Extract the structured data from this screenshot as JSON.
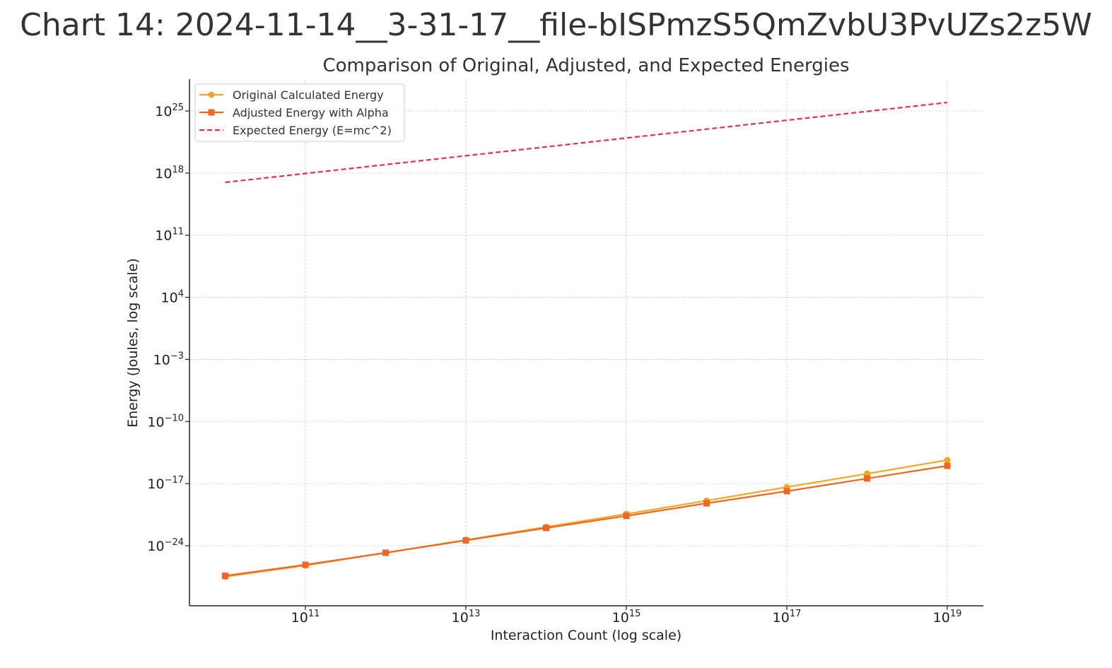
{
  "page": {
    "title": "Chart 14: 2024-11-14__3-31-17__file-bISPmzS5QmZvbU3PvUZs2z5W"
  },
  "chart_data": {
    "type": "line",
    "title": "Comparison of Original, Adjusted, and Expected Energies",
    "xlabel": "Interaction Count (log scale)",
    "ylabel": "Energy (Joules, log scale)",
    "x_scale": "log",
    "y_scale": "log",
    "xlim": [
      2000000000.0,
      1e+19
    ],
    "ylim": [
      1e-31,
      1e+29
    ],
    "x_ticks": [
      {
        "value": 100000000000.0,
        "base": "10",
        "exp": "11"
      },
      {
        "value": 10000000000000.0,
        "base": "10",
        "exp": "13"
      },
      {
        "value": 1000000000000000.0,
        "base": "10",
        "exp": "15"
      },
      {
        "value": 1e+17,
        "base": "10",
        "exp": "17"
      },
      {
        "value": 1e+19,
        "base": "10",
        "exp": "19"
      }
    ],
    "y_ticks": [
      {
        "value": 1e+25,
        "base": "10",
        "exp": "25"
      },
      {
        "value": 1e+18,
        "base": "10",
        "exp": "18"
      },
      {
        "value": 100000000000.0,
        "base": "10",
        "exp": "11"
      },
      {
        "value": 10000.0,
        "base": "10",
        "exp": "4"
      },
      {
        "value": 0.001,
        "base": "10",
        "exp": "−3"
      },
      {
        "value": 1e-10,
        "base": "10",
        "exp": "−10"
      },
      {
        "value": 1e-17,
        "base": "10",
        "exp": "−17"
      },
      {
        "value": 1e-24,
        "base": "10",
        "exp": "−24"
      }
    ],
    "grid": true,
    "legend_position": "top-left",
    "x": [
      10000000000.0,
      100000000000.0,
      1000000000000.0,
      10000000000000.0,
      100000000000000.0,
      1000000000000000.0,
      1e+16,
      1e+17,
      1e+18,
      1e+19
    ],
    "series": [
      {
        "name": "Original Calculated Energy",
        "color": "#f5a623",
        "marker": "circle",
        "line_style": "solid",
        "values": [
          3.2e-28,
          6e-27,
          1.6e-25,
          4.5e-24,
          1.3e-22,
          3.8e-21,
          1.2e-19,
          4e-18,
          1.3e-16,
          4.5e-15
        ]
      },
      {
        "name": "Adjusted Energy with Alpha",
        "color": "#f26522",
        "marker": "square",
        "line_style": "solid",
        "values": [
          4e-28,
          7e-27,
          1.6e-25,
          4e-24,
          1e-22,
          2.3e-21,
          6e-20,
          1.4e-18,
          3.8e-17,
          1e-15
        ]
      },
      {
        "name": "Expected Energy (E=mc^2)",
        "color": "#e8314b",
        "marker": "none",
        "line_style": "dashed",
        "x": [
          10000000000.0,
          1e+19
        ],
        "values": [
          9e+16,
          9e+25
        ]
      }
    ]
  },
  "colors": {
    "grid": "#cccccc",
    "axis": "#222222",
    "text": "#333333"
  }
}
